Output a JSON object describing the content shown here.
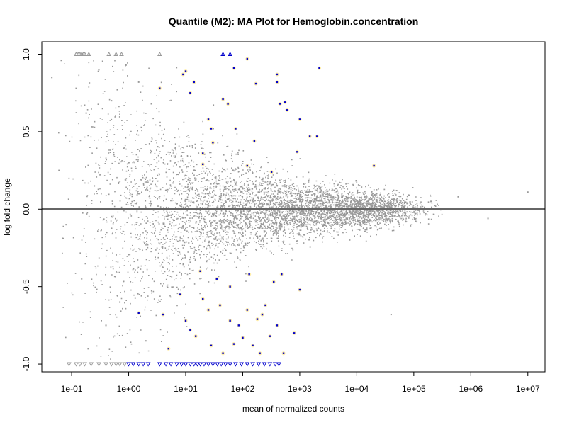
{
  "chart_data": {
    "type": "scatter",
    "title": "Quantile (M2): MA Plot for Hemoglobin.concentration",
    "xlabel": "mean of normalized counts",
    "ylabel": "log fold change",
    "x_scale": "log10",
    "xlim": [
      0.03,
      20000000
    ],
    "ylim": [
      -1.05,
      1.08
    ],
    "x_ticks": [
      0.1,
      1,
      10,
      100,
      1000,
      10000,
      100000,
      1000000,
      10000000
    ],
    "x_tick_labels": [
      "1e-01",
      "1e+00",
      "1e+01",
      "1e+02",
      "1e+03",
      "1e+04",
      "1e+05",
      "1e+06",
      "1e+07"
    ],
    "y_ticks": [
      -1.0,
      -0.5,
      0.0,
      0.5,
      1.0
    ],
    "y_tick_labels": [
      "-1.0",
      "-0.5",
      "0.0",
      "0.5",
      "1.0"
    ],
    "hline": 0,
    "grid": false,
    "colors": {
      "non_significant": "#999999",
      "significant": "#0000cc",
      "halo": "#ffe066",
      "hline": "#666666"
    },
    "series": [
      {
        "values": [
          [
            0.045,
            0.85
          ],
          [
            0.06,
            0.25
          ],
          [
            0.12,
            0.78
          ],
          [
            0.18,
            0.62
          ],
          [
            0.3,
            0.9
          ],
          [
            0.5,
            0.7
          ],
          [
            0.9,
            0.93
          ],
          [
            1.5,
            0.82
          ],
          [
            2.5,
            0.68
          ],
          [
            0.08,
            -0.1
          ],
          [
            0.15,
            -0.45
          ],
          [
            0.4,
            -0.75
          ],
          [
            0.7,
            -0.6
          ],
          [
            2.0,
            -0.85
          ],
          [
            0.25,
            0.15
          ],
          [
            40000,
            -0.68
          ],
          [
            50000,
            0.12
          ],
          [
            200000,
            0.05
          ],
          [
            600000,
            0.08
          ],
          [
            2000000,
            -0.06
          ],
          [
            10000000,
            0.11
          ],
          [
            1000,
            0.05
          ],
          [
            3000,
            -0.04
          ],
          [
            100,
            0.02
          ],
          [
            30,
            -0.03
          ],
          [
            8000,
            0.08
          ],
          [
            15000,
            -0.07
          ],
          [
            500,
            0.15
          ],
          [
            200,
            -0.12
          ],
          [
            60,
            0.2
          ]
        ]
      },
      {
        "values": [
          [
            9,
            0.87
          ],
          [
            10,
            0.89
          ],
          [
            12,
            0.75
          ],
          [
            14,
            0.82
          ],
          [
            25,
            0.58
          ],
          [
            28,
            0.52
          ],
          [
            30,
            0.43
          ],
          [
            45,
            0.71
          ],
          [
            55,
            0.68
          ],
          [
            70,
            0.91
          ],
          [
            75,
            0.52
          ],
          [
            120,
            0.97
          ],
          [
            170,
            0.81
          ],
          [
            400,
            0.87
          ],
          [
            400,
            0.82
          ],
          [
            450,
            0.68
          ],
          [
            550,
            0.69
          ],
          [
            600,
            0.64
          ],
          [
            1000,
            0.58
          ],
          [
            1500,
            0.47
          ],
          [
            2000,
            0.47
          ],
          [
            2200,
            0.91
          ],
          [
            20000,
            0.28
          ],
          [
            120,
            0.28
          ],
          [
            20,
            0.29
          ],
          [
            160,
            0.44
          ],
          [
            3.5,
            0.78
          ],
          [
            20,
            0.36
          ],
          [
            320,
            0.24
          ],
          [
            900,
            0.37
          ],
          [
            4,
            -0.68
          ],
          [
            1.5,
            -0.67
          ],
          [
            8,
            -0.55
          ],
          [
            10,
            -0.72
          ],
          [
            12,
            -0.78
          ],
          [
            15,
            -0.82
          ],
          [
            20,
            -0.58
          ],
          [
            25,
            -0.65
          ],
          [
            28,
            -0.88
          ],
          [
            40,
            -0.62
          ],
          [
            45,
            -0.93
          ],
          [
            60,
            -0.72
          ],
          [
            70,
            -0.87
          ],
          [
            85,
            -0.75
          ],
          [
            100,
            -0.83
          ],
          [
            120,
            -0.65
          ],
          [
            150,
            -0.88
          ],
          [
            180,
            -0.71
          ],
          [
            200,
            -0.93
          ],
          [
            220,
            -0.68
          ],
          [
            300,
            -0.82
          ],
          [
            400,
            -0.75
          ],
          [
            480,
            -0.42
          ],
          [
            520,
            -0.93
          ],
          [
            800,
            -0.8
          ],
          [
            1000,
            -0.52
          ],
          [
            130,
            -0.42
          ],
          [
            5,
            -0.9
          ],
          [
            18,
            -0.4
          ],
          [
            35,
            -0.45
          ],
          [
            60,
            -0.5
          ],
          [
            250,
            -0.62
          ],
          [
            350,
            -0.47
          ]
        ]
      },
      {
        "values": [
          [
            0.12,
            1.0
          ],
          [
            0.13,
            1.0
          ],
          [
            0.14,
            1.0
          ],
          [
            0.15,
            1.0
          ],
          [
            0.16,
            1.0
          ],
          [
            0.17,
            1.0
          ],
          [
            0.2,
            1.0
          ],
          [
            0.45,
            1.0
          ],
          [
            0.6,
            1.0
          ],
          [
            0.75,
            1.0
          ],
          [
            3.5,
            1.0
          ],
          [
            45,
            1.0
          ],
          [
            60,
            1.0
          ]
        ]
      },
      {
        "values": [
          [
            0.09,
            -1.0
          ],
          [
            0.12,
            -1.0
          ],
          [
            0.14,
            -1.0
          ],
          [
            0.17,
            -1.0
          ],
          [
            0.22,
            -1.0
          ],
          [
            0.3,
            -1.0
          ],
          [
            0.4,
            -1.0
          ],
          [
            0.5,
            -1.0
          ],
          [
            0.6,
            -1.0
          ],
          [
            0.7,
            -1.0
          ],
          [
            0.85,
            -1.0
          ],
          [
            1.0,
            -1.0
          ],
          [
            1.2,
            -1.0
          ],
          [
            1.5,
            -1.0
          ],
          [
            1.8,
            -1.0
          ],
          [
            2.2,
            -1.0
          ],
          [
            3.5,
            -1.0
          ],
          [
            4.5,
            -1.0
          ],
          [
            5.5,
            -1.0
          ],
          [
            7,
            -1.0
          ],
          [
            8.5,
            -1.0
          ],
          [
            10,
            -1.0
          ],
          [
            12,
            -1.0
          ],
          [
            14,
            -1.0
          ],
          [
            16,
            -1.0
          ],
          [
            18,
            -1.0
          ],
          [
            21,
            -1.0
          ],
          [
            25,
            -1.0
          ],
          [
            30,
            -1.0
          ],
          [
            36,
            -1.0
          ],
          [
            42,
            -1.0
          ],
          [
            50,
            -1.0
          ],
          [
            60,
            -1.0
          ],
          [
            75,
            -1.0
          ],
          [
            95,
            -1.0
          ],
          [
            120,
            -1.0
          ],
          [
            150,
            -1.0
          ],
          [
            190,
            -1.0
          ],
          [
            240,
            -1.0
          ],
          [
            300,
            -1.0
          ],
          [
            370,
            -1.0
          ],
          [
            430,
            -1.0
          ]
        ]
      }
    ]
  }
}
